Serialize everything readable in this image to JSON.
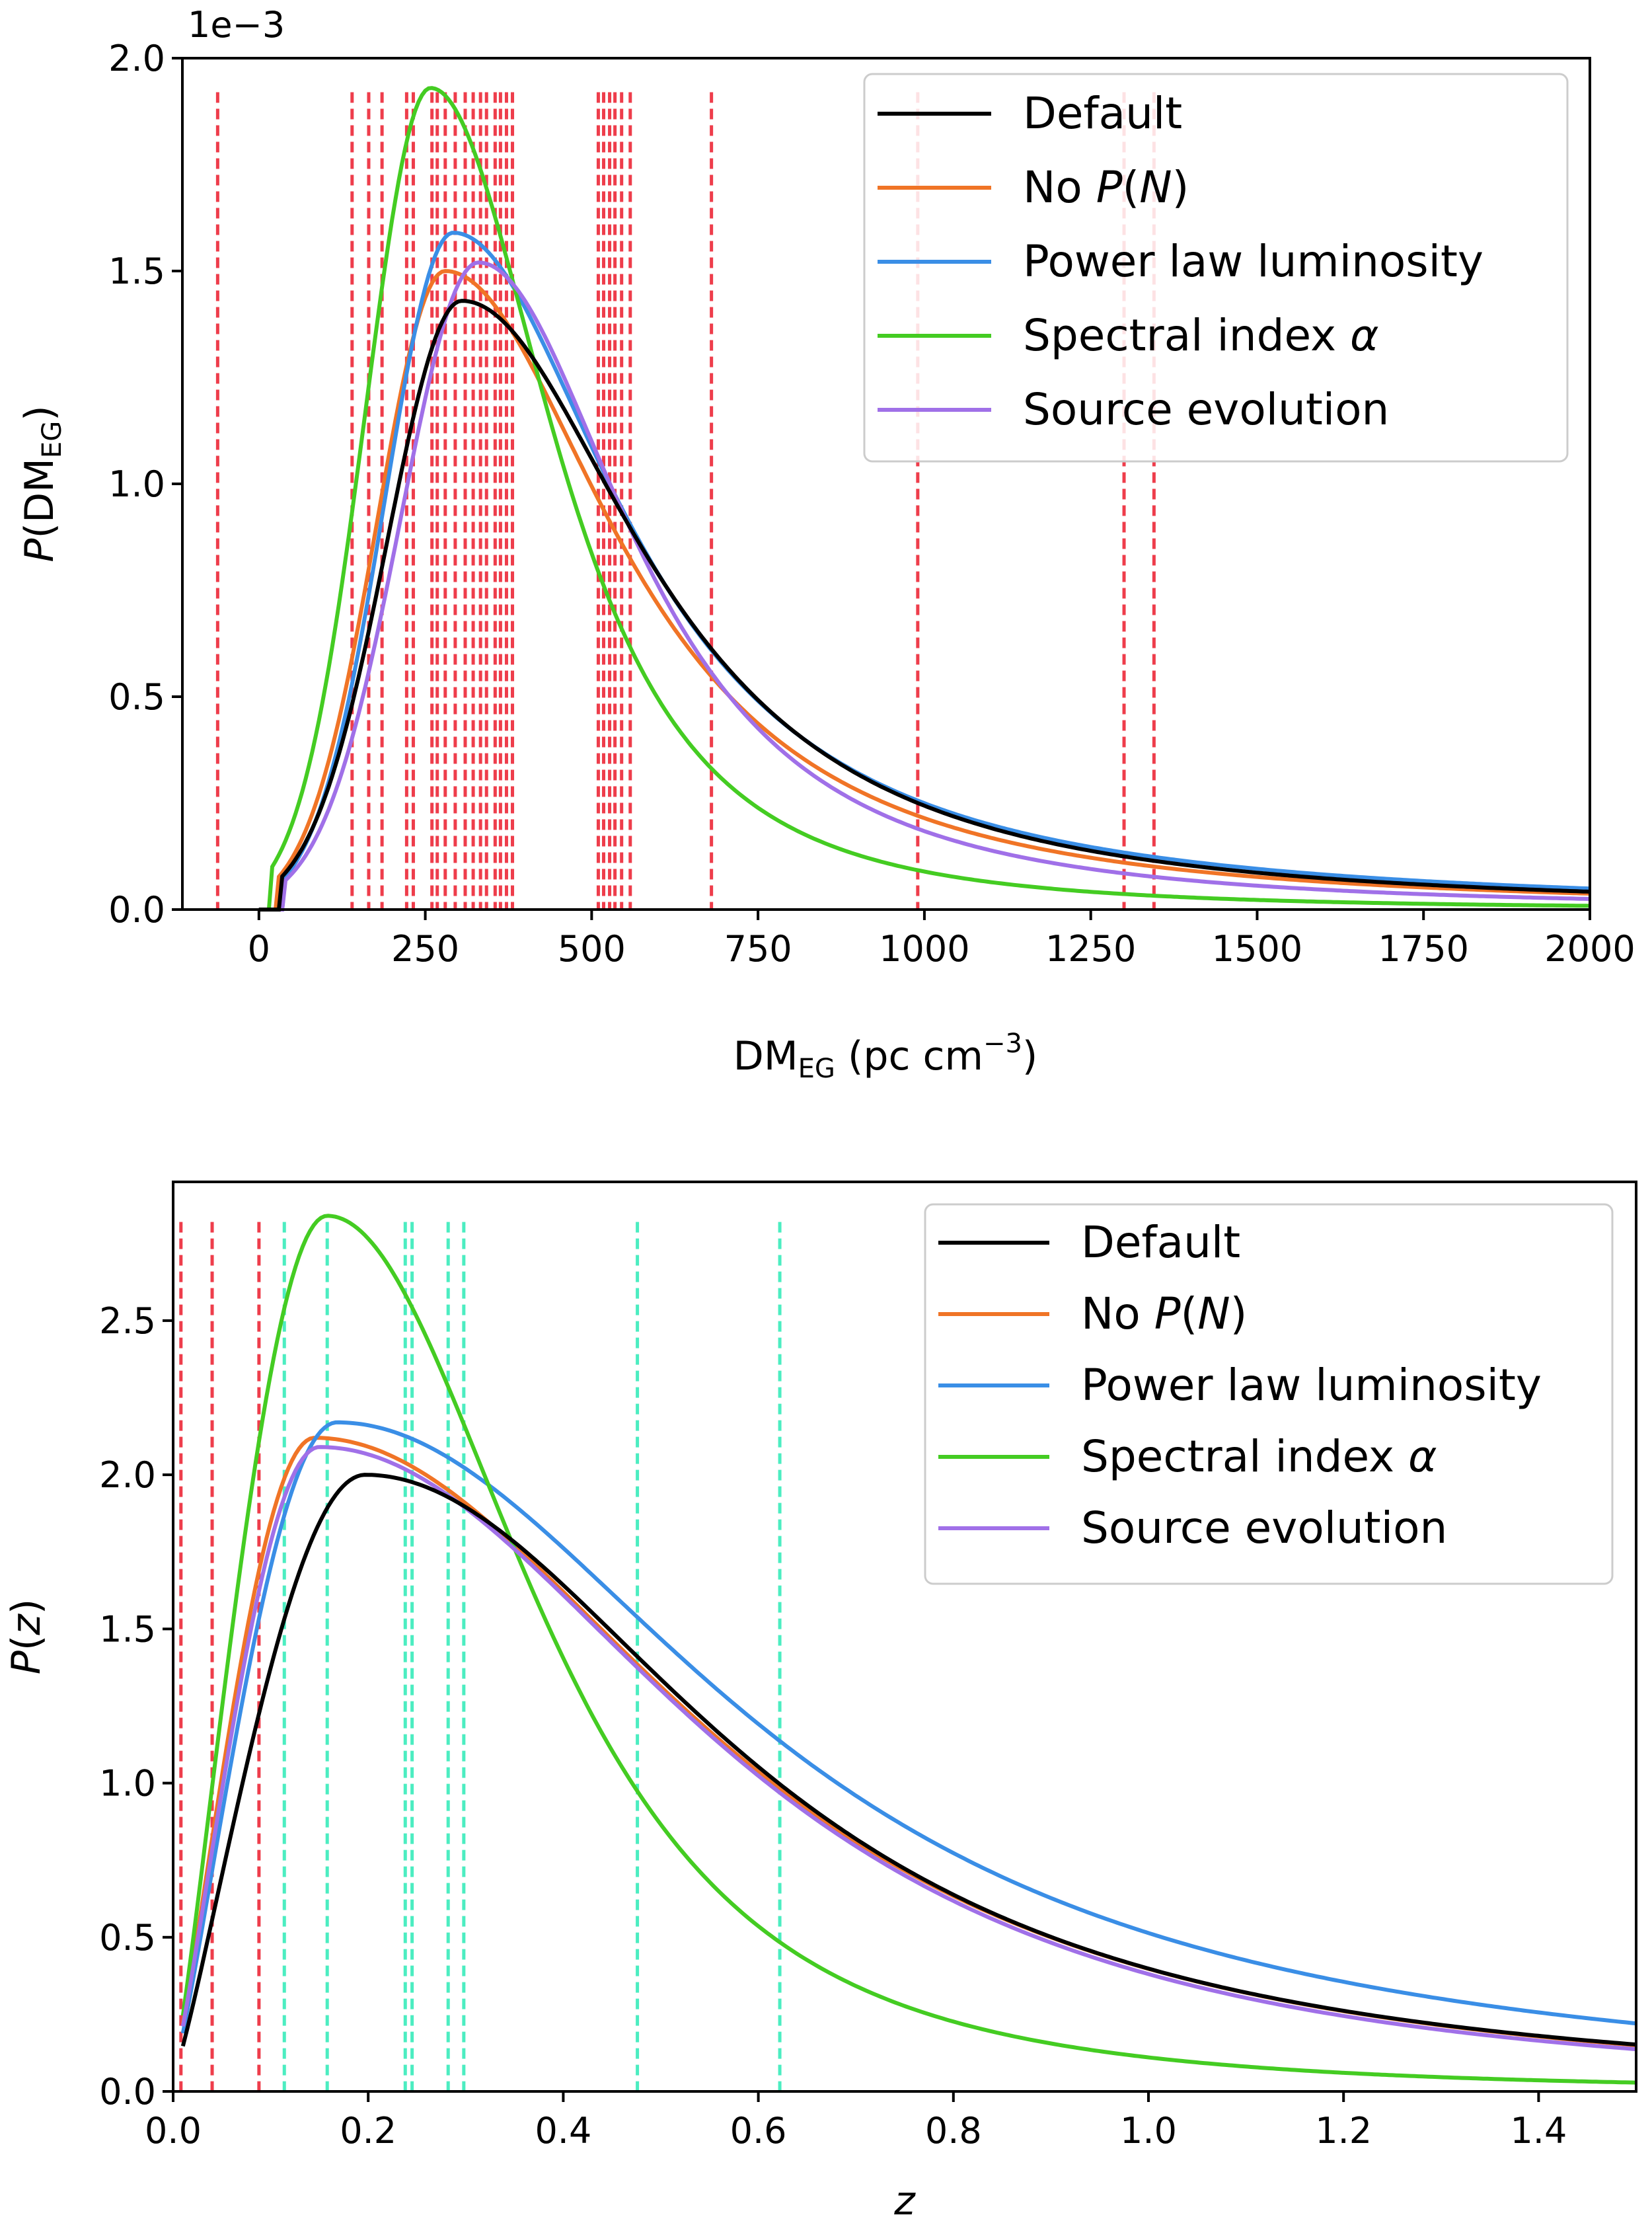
{
  "chart_data": [
    {
      "type": "line",
      "panel": "top",
      "ylabel_prefix": "P",
      "ylabel_paren_open": "(DM",
      "ylabel_sub": "EG",
      "ylabel_paren_close": ")",
      "xlabel_main": "DM",
      "xlabel_sub": "EG",
      "xlabel_unit": " (pc cm",
      "xlabel_sup": "−3",
      "xlabel_close": ")",
      "offset_text": "1e−3",
      "xlim": [
        -115,
        2000
      ],
      "ylim": [
        0,
        2.0
      ],
      "xticks": [
        0,
        250,
        500,
        750,
        1000,
        1250,
        1500,
        1750,
        2000
      ],
      "xtick_labels": [
        "0",
        "250",
        "500",
        "750",
        "1000",
        "1250",
        "1500",
        "1750",
        "2000"
      ],
      "yticks": [
        0.0,
        0.5,
        1.0,
        1.5,
        2.0
      ],
      "ytick_labels": [
        "0.0",
        "0.5",
        "1.0",
        "1.5",
        "2.0"
      ],
      "legend_position": "top-right",
      "series": [
        {
          "name": "Default",
          "color": "#000000",
          "peak_x": 305,
          "peak_y": 1.43,
          "start_x": 30,
          "left_width": 120,
          "right_scale": 330,
          "tail_power": 2.2
        },
        {
          "name": "No P(N)",
          "color": "#f07426",
          "peak_x": 280,
          "peak_y": 1.5,
          "start_x": 25,
          "left_width": 110,
          "right_scale": 310,
          "tail_power": 2.2
        },
        {
          "name": "Power law luminosity",
          "color": "#3a8ee6",
          "peak_x": 292,
          "peak_y": 1.59,
          "start_x": 35,
          "left_width": 110,
          "right_scale": 290,
          "tail_power": 2.0
        },
        {
          "name": "Spectral index α",
          "color": "#44cc22",
          "peak_x": 258,
          "peak_y": 1.93,
          "start_x": 15,
          "left_width": 105,
          "right_scale": 260,
          "tail_power": 2.9
        },
        {
          "name": "Source evolution",
          "color": "#a070e8",
          "peak_x": 330,
          "peak_y": 1.52,
          "start_x": 35,
          "left_width": 125,
          "right_scale": 290,
          "tail_power": 2.4
        }
      ],
      "vlines": {
        "color": "#ee3d4b",
        "x": [
          -62,
          140,
          165,
          185,
          222,
          232,
          260,
          268,
          280,
          295,
          310,
          322,
          333,
          342,
          355,
          363,
          372,
          381,
          510,
          518,
          527,
          535,
          545,
          558,
          680,
          990,
          1300,
          1345
        ]
      }
    },
    {
      "type": "line",
      "panel": "bottom",
      "ylabel_prefix": "P",
      "ylabel_paren_open": "(",
      "ylabel_var": "z",
      "ylabel_paren_close": ")",
      "xlabel": "z",
      "xlim": [
        0.0,
        1.5
      ],
      "ylim": [
        0,
        2.95
      ],
      "xticks": [
        0.0,
        0.2,
        0.4,
        0.6,
        0.8,
        1.0,
        1.2,
        1.4
      ],
      "xtick_labels": [
        "0.0",
        "0.2",
        "0.4",
        "0.6",
        "0.8",
        "1.0",
        "1.2",
        "1.4"
      ],
      "yticks": [
        0.0,
        0.5,
        1.0,
        1.5,
        2.0,
        2.5
      ],
      "ytick_labels": [
        "0.0",
        "0.5",
        "1.0",
        "1.5",
        "2.0",
        "2.5"
      ],
      "legend_position": "top-right",
      "series": [
        {
          "name": "Default",
          "color": "#000000",
          "peak_x": 0.197,
          "peak_y": 2.0,
          "start_x": 0.01,
          "start_y": 0.04,
          "right_scale": 0.36,
          "tail_power": 1.7
        },
        {
          "name": "No P(N)",
          "color": "#f07426",
          "peak_x": 0.145,
          "peak_y": 2.12,
          "start_x": 0.01,
          "start_y": 0.06,
          "right_scale": 0.4,
          "tail_power": 1.85
        },
        {
          "name": "Power law luminosity",
          "color": "#3a8ee6",
          "peak_x": 0.168,
          "peak_y": 2.17,
          "start_x": 0.01,
          "start_y": 0.05,
          "right_scale": 0.38,
          "tail_power": 1.55
        },
        {
          "name": "Spectral index α",
          "color": "#44cc22",
          "peak_x": 0.158,
          "peak_y": 2.84,
          "start_x": 0.01,
          "start_y": 0.05,
          "right_scale": 0.24,
          "tail_power": 2.2
        },
        {
          "name": "Source evolution",
          "color": "#a070e8",
          "peak_x": 0.15,
          "peak_y": 2.09,
          "start_x": 0.01,
          "start_y": 0.06,
          "right_scale": 0.41,
          "tail_power": 1.95
        }
      ],
      "vlines_red": {
        "color": "#ee3d4b",
        "x": [
          0.008,
          0.04,
          0.088
        ]
      },
      "vlines_teal": {
        "color": "#4cedc1",
        "x": [
          0.114,
          0.158,
          0.238,
          0.245,
          0.282,
          0.298,
          0.476,
          0.622
        ]
      }
    }
  ],
  "legend_labels": [
    {
      "main": "Default",
      "italic": "",
      "tail": ""
    },
    {
      "main": "No ",
      "italic": "P",
      "tail": "(",
      "italic2": "N",
      "tail2": ")"
    },
    {
      "main": "Power law luminosity",
      "italic": "",
      "tail": ""
    },
    {
      "main": "Spectral index ",
      "italic": "α",
      "tail": ""
    },
    {
      "main": "Source evolution",
      "italic": "",
      "tail": ""
    }
  ]
}
